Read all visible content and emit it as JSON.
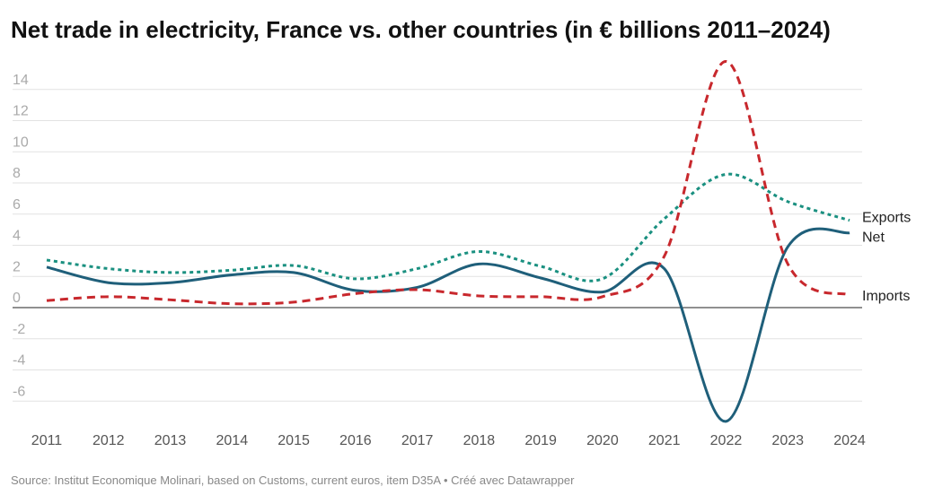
{
  "chart_data": {
    "type": "line",
    "title": "Net trade in electricity, France vs. other countries (in € billions 2011–2024)",
    "source": "Source: Institut Economique Molinari, based on Customs, current euros, item D35A • Créé avec Datawrapper",
    "categories": [
      "2011",
      "2012",
      "2013",
      "2014",
      "2015",
      "2016",
      "2017",
      "2018",
      "2019",
      "2020",
      "2021",
      "2022",
      "2023",
      "2024"
    ],
    "series": [
      {
        "name": "Exports",
        "color": "#1a9080",
        "dash": "dotted",
        "values": [
          3.05,
          2.5,
          2.25,
          2.4,
          2.7,
          1.85,
          2.5,
          3.6,
          2.65,
          1.85,
          5.7,
          8.55,
          6.8,
          5.6
        ]
      },
      {
        "name": "Net",
        "color": "#1f5f7a",
        "dash": "solid",
        "values": [
          2.6,
          1.6,
          1.6,
          2.1,
          2.25,
          1.1,
          1.3,
          2.8,
          1.9,
          1.0,
          2.5,
          -7.3,
          3.9,
          4.8
        ]
      },
      {
        "name": "Imports",
        "color": "#c8282d",
        "dash": "dashed",
        "values": [
          0.45,
          0.7,
          0.5,
          0.25,
          0.35,
          0.9,
          1.15,
          0.75,
          0.7,
          0.7,
          3.3,
          15.8,
          2.8,
          0.8
        ]
      }
    ],
    "ylim": [
      -8,
      16
    ],
    "yticks": [
      -6,
      -4,
      -2,
      0,
      2,
      4,
      6,
      8,
      10,
      12,
      14
    ],
    "grid": true
  }
}
